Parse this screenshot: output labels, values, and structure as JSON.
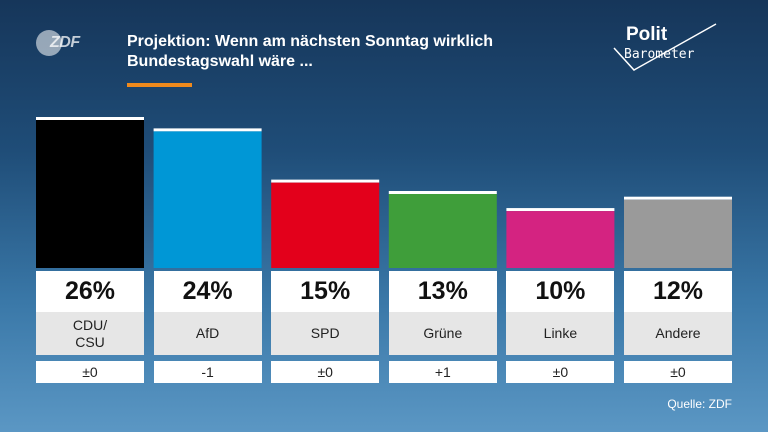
{
  "header": {
    "brand": "ZDF",
    "title": "Projektion: Wenn am nächsten Sonntag wirklich Bundestagswahl wäre ...",
    "logo_line1": "Polit",
    "logo_line2": "Barometer",
    "accent_color": "#f08a1c"
  },
  "chart_data": {
    "type": "bar",
    "categories": [
      "CDU/\nCSU",
      "AfD",
      "SPD",
      "Grüne",
      "Linke",
      "Andere"
    ],
    "values": [
      26,
      24,
      15,
      13,
      10,
      12
    ],
    "value_labels": [
      "26%",
      "24%",
      "15%",
      "13%",
      "10%",
      "12%"
    ],
    "changes": [
      "±0",
      "-1",
      "±0",
      "+1",
      "±0",
      "±0"
    ],
    "colors": [
      "#000000",
      "#0097d6",
      "#e3001b",
      "#3f9e3a",
      "#d42381",
      "#9a9a9a"
    ],
    "unit": "%",
    "ylim": [
      0,
      26
    ],
    "title": "Projektion: Wenn am nächsten Sonntag wirklich Bundestagswahl wäre ...",
    "xlabel": "",
    "ylabel": "",
    "grid": false
  },
  "footer": {
    "source": "Quelle: ZDF"
  }
}
